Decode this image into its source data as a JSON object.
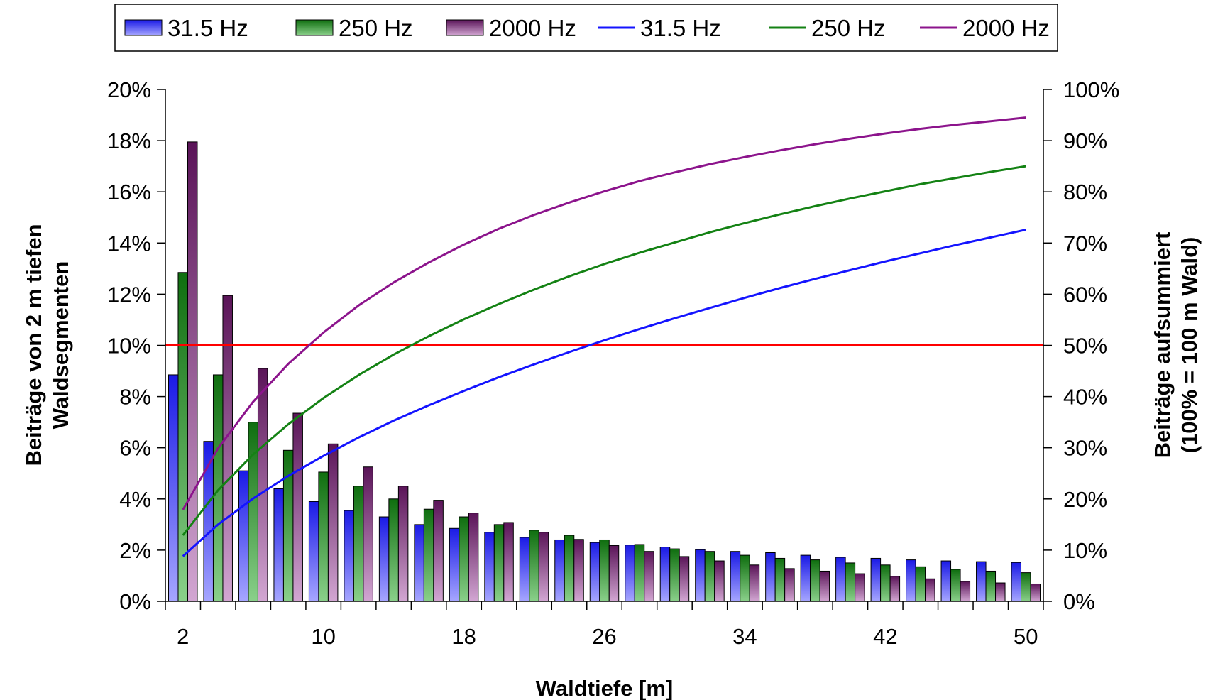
{
  "chart_data": {
    "type": "bar+line",
    "xlabel": "Waldtiefe [m]",
    "ylabel_left": [
      "Beiträge von 2 m tiefen",
      "Waldsegmenten"
    ],
    "ylabel_right": [
      "Beiträge aufsummiert",
      "(100% = 100 m Wald)"
    ],
    "x": [
      2,
      4,
      6,
      8,
      10,
      12,
      14,
      16,
      18,
      20,
      22,
      24,
      26,
      28,
      30,
      32,
      34,
      36,
      38,
      40,
      42,
      44,
      46,
      48,
      50
    ],
    "x_tick_labels": [
      "2",
      "10",
      "18",
      "26",
      "34",
      "42",
      "50"
    ],
    "y_left_ticks": [
      "0%",
      "2%",
      "4%",
      "6%",
      "8%",
      "10%",
      "12%",
      "14%",
      "16%",
      "18%",
      "20%"
    ],
    "y_right_ticks": [
      "0%",
      "10%",
      "20%",
      "30%",
      "40%",
      "50%",
      "60%",
      "70%",
      "80%",
      "90%",
      "100%"
    ],
    "ylim_left": [
      0,
      20
    ],
    "ylim_right": [
      0,
      100
    ],
    "legend_position": "top",
    "bar_series": [
      {
        "name": "31.5 Hz",
        "color": "#2828f0",
        "values": [
          8.85,
          6.25,
          5.1,
          4.4,
          3.9,
          3.55,
          3.3,
          3.0,
          2.85,
          2.7,
          2.5,
          2.4,
          2.3,
          2.2,
          2.12,
          2.02,
          1.95,
          1.9,
          1.8,
          1.72,
          1.68,
          1.62,
          1.58,
          1.55,
          1.52
        ]
      },
      {
        "name": "250 Hz",
        "color": "#147814",
        "values": [
          12.85,
          8.85,
          7.0,
          5.9,
          5.05,
          4.5,
          4.0,
          3.6,
          3.3,
          3.0,
          2.78,
          2.58,
          2.4,
          2.22,
          2.05,
          1.95,
          1.8,
          1.68,
          1.62,
          1.5,
          1.42,
          1.35,
          1.25,
          1.18,
          1.12
        ]
      },
      {
        "name": "2000 Hz",
        "color": "#6e1e6e",
        "values": [
          17.95,
          11.95,
          9.1,
          7.35,
          6.15,
          5.25,
          4.5,
          3.95,
          3.45,
          3.08,
          2.7,
          2.42,
          2.18,
          1.95,
          1.75,
          1.58,
          1.42,
          1.28,
          1.18,
          1.08,
          0.98,
          0.88,
          0.78,
          0.72,
          0.68
        ]
      }
    ],
    "line_series": [
      {
        "name": "31.5 Hz",
        "color": "#1414ff",
        "values": [
          8.8,
          15.0,
          20.1,
          24.5,
          28.4,
          32.0,
          35.3,
          38.3,
          41.1,
          43.8,
          46.3,
          48.7,
          51.0,
          53.2,
          55.3,
          57.3,
          59.3,
          61.2,
          63.0,
          64.7,
          66.4,
          68.0,
          69.6,
          71.1,
          72.6
        ]
      },
      {
        "name": "250 Hz",
        "color": "#148214",
        "values": [
          12.9,
          21.7,
          28.7,
          34.6,
          39.7,
          44.2,
          48.2,
          51.8,
          55.1,
          58.1,
          60.9,
          63.5,
          65.9,
          68.1,
          70.1,
          72.1,
          73.9,
          75.6,
          77.2,
          78.7,
          80.1,
          81.5,
          82.7,
          83.9,
          85.0
        ]
      },
      {
        "name": "2000 Hz",
        "color": "#8c148c",
        "values": [
          17.9,
          29.9,
          39.0,
          46.4,
          52.5,
          57.8,
          62.3,
          66.2,
          69.7,
          72.8,
          75.5,
          77.9,
          80.1,
          82.1,
          83.8,
          85.4,
          86.8,
          88.1,
          89.3,
          90.4,
          91.4,
          92.3,
          93.1,
          93.8,
          94.5
        ]
      }
    ],
    "reference_line": {
      "y_left": 10,
      "color": "#ff0000"
    }
  }
}
